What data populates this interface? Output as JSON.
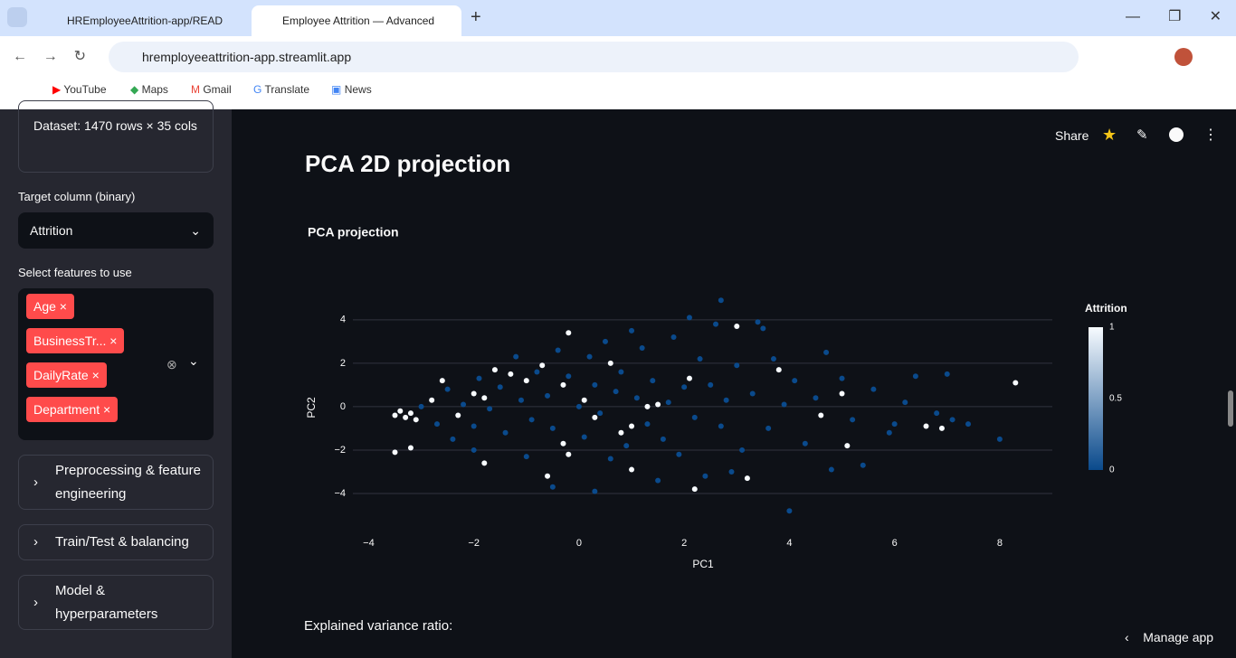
{
  "browser": {
    "tabs": [
      "HREmployeeAttrition-app/READ",
      "Employee Attrition — Advanced"
    ],
    "url": "hremployeeattrition-app.streamlit.app",
    "bookmarks": [
      "YouTube",
      "Maps",
      "Gmail",
      "Translate",
      "News"
    ]
  },
  "sidebar": {
    "dataset_info": "Dataset: 1470 rows × 35 cols",
    "target_label": "Target column (binary)",
    "target_value": "Attrition",
    "features_label": "Select features to use",
    "features": [
      "Age",
      "BusinessTr...",
      "DailyRate",
      "Department"
    ],
    "expanders": [
      "Preprocessing & feature engineering",
      "Train/Test & balancing",
      "Model & hyperparameters"
    ]
  },
  "toolbar": {
    "share": "Share"
  },
  "main": {
    "heading": "PCA 2D projection",
    "variance_label": "Explained variance ratio:",
    "manage": "Manage app"
  },
  "chart_data": {
    "type": "scatter",
    "title": "PCA projection",
    "x_label": "PC1",
    "y_label": "PC2",
    "xlim": [
      -4.3,
      9.0
    ],
    "ylim": [
      -5.0,
      5.2
    ],
    "xticks": [
      {
        "value": -4,
        "label": "−4"
      },
      {
        "value": -2,
        "label": "−2"
      },
      0,
      2,
      4,
      6,
      8
    ],
    "yticks": [
      {
        "value": -4,
        "label": "−4"
      },
      {
        "value": -2,
        "label": "−2"
      },
      0,
      2,
      4
    ],
    "grid": true,
    "colorbar": {
      "title": "Attrition",
      "range": [
        0,
        1
      ],
      "ticks": [
        0,
        0.5,
        1
      ],
      "colorscale": [
        "#0a4a8c",
        "#f7fbff"
      ]
    },
    "x": [
      -3.0,
      -2.7,
      -2.5,
      -2.4,
      -2.2,
      -2.0,
      -1.9,
      -1.7,
      -1.5,
      -1.4,
      -1.2,
      -1.1,
      -0.9,
      -0.8,
      -0.6,
      -0.5,
      -0.4,
      -0.2,
      0.0,
      0.1,
      0.2,
      0.3,
      0.4,
      0.5,
      0.6,
      0.7,
      0.8,
      0.9,
      1.1,
      1.2,
      1.3,
      1.4,
      1.6,
      1.7,
      1.8,
      1.9,
      2.0,
      2.2,
      2.3,
      2.4,
      2.5,
      2.6,
      2.7,
      2.8,
      3.0,
      3.1,
      3.3,
      3.5,
      3.6,
      3.7,
      3.9,
      4.0,
      4.1,
      4.3,
      4.5,
      4.7,
      4.8,
      5.0,
      5.2,
      5.4,
      5.6,
      5.9,
      6.2,
      6.4,
      6.8,
      7.1,
      7.4,
      8.0,
      2.1,
      2.7,
      3.4,
      -0.5,
      1.5,
      2.9,
      0.3,
      -1.0,
      -2.0,
      6.0,
      7.0,
      1.0,
      -3.3,
      -3.2,
      -3.1,
      -3.4,
      -3.5,
      -3.2,
      -3.5,
      -2.8,
      -2.6,
      -2.3,
      -2.0,
      -1.8,
      -1.6,
      -1.3,
      -1.0,
      -0.7,
      -0.3,
      -0.3,
      -0.2,
      -0.6,
      -1.8,
      0.3,
      0.8,
      1.0,
      1.3,
      1.0,
      0.6,
      0.1,
      -0.2,
      2.2,
      3.0,
      3.2,
      3.8,
      5.0,
      5.1,
      6.6,
      6.9,
      8.3,
      4.6,
      1.5,
      2.1
    ],
    "y": [
      0.0,
      -0.8,
      0.8,
      -1.5,
      0.1,
      -0.9,
      1.3,
      -0.1,
      0.9,
      -1.2,
      2.3,
      0.3,
      -0.6,
      1.6,
      0.5,
      -1.0,
      2.6,
      1.4,
      0.0,
      -1.4,
      2.3,
      1.0,
      -0.3,
      3.0,
      -2.4,
      0.7,
      1.6,
      -1.8,
      0.4,
      2.7,
      -0.8,
      1.2,
      -1.5,
      0.2,
      3.2,
      -2.2,
      0.9,
      -0.5,
      2.2,
      -3.2,
      1.0,
      3.8,
      -0.9,
      0.3,
      1.9,
      -2.0,
      0.6,
      3.6,
      -1.0,
      2.2,
      0.1,
      -4.8,
      1.2,
      -1.7,
      0.4,
      2.5,
      -2.9,
      1.3,
      -0.6,
      -2.7,
      0.8,
      -1.2,
      0.2,
      1.4,
      -0.3,
      -0.6,
      -0.8,
      -1.5,
      4.1,
      4.9,
      3.9,
      -3.7,
      -3.4,
      -3.0,
      -3.9,
      -2.3,
      -2.0,
      -0.8,
      1.5,
      3.5,
      -0.5,
      -0.3,
      -0.6,
      -0.2,
      -0.4,
      -1.9,
      -2.1,
      0.3,
      1.2,
      -0.4,
      0.6,
      0.4,
      1.7,
      1.5,
      1.2,
      1.9,
      1.0,
      -1.7,
      -2.2,
      -3.2,
      -2.6,
      -0.5,
      -1.2,
      -0.9,
      0.0,
      -2.9,
      2.0,
      0.3,
      3.4,
      -3.8,
      3.7,
      -3.3,
      1.7,
      0.6,
      -1.8,
      -0.9,
      -1.0,
      1.1,
      -0.4,
      0.1,
      1.3
    ],
    "attrition": [
      0,
      0,
      0,
      0,
      0,
      0,
      0,
      0,
      0,
      0,
      0,
      0,
      0,
      0,
      0,
      0,
      0,
      0,
      0,
      0,
      0,
      0,
      0,
      0,
      0,
      0,
      0,
      0,
      0,
      0,
      0,
      0,
      0,
      0,
      0,
      0,
      0,
      0,
      0,
      0,
      0,
      0,
      0,
      0,
      0,
      0,
      0,
      0,
      0,
      0,
      0,
      0,
      0,
      0,
      0,
      0,
      0,
      0,
      0,
      0,
      0,
      0,
      0,
      0,
      0,
      0,
      0,
      0,
      0,
      0,
      0,
      0,
      0,
      0,
      0,
      0,
      0,
      0,
      0,
      0,
      1,
      1,
      1,
      1,
      1,
      1,
      1,
      1,
      1,
      1,
      1,
      1,
      1,
      1,
      1,
      1,
      1,
      1,
      1,
      1,
      1,
      1,
      1,
      1,
      1,
      1,
      1,
      1,
      1,
      1,
      1,
      1,
      1,
      1,
      1,
      1,
      1,
      1,
      1,
      1,
      1
    ]
  }
}
